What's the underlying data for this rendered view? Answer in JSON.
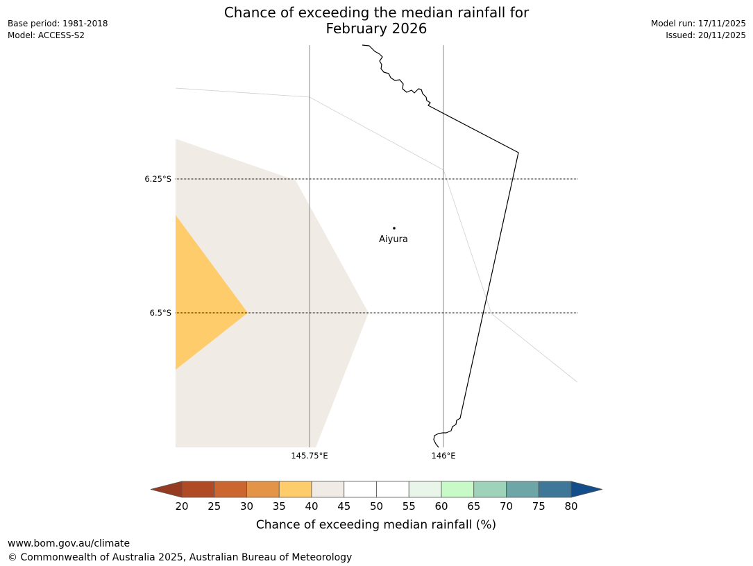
{
  "header": {
    "base_period": "Base period: 1981-2018",
    "model": "Model: ACCESS-S2",
    "model_run": "Model run: 17/11/2025",
    "issued": "Issued: 20/11/2025",
    "title_line1": "Chance of exceeding the median rainfall for",
    "title_line2": "February 2026"
  },
  "map": {
    "town": "Aiyura",
    "lat_labels": [
      "6.25°S",
      "6.5°S"
    ],
    "lon_labels": [
      "145.75°E",
      "146°E"
    ],
    "colors": {
      "band_35_40": "#fecc6a",
      "band_40_45": "#f0ebe5",
      "coastline": "#000000",
      "gridline": "#888888"
    }
  },
  "colorbar": {
    "label": "Chance of exceeding median rainfall (%)",
    "ticks": [
      "20",
      "25",
      "30",
      "35",
      "40",
      "45",
      "50",
      "55",
      "60",
      "65",
      "70",
      "75",
      "80"
    ],
    "under_color": "#963a22",
    "over_color": "#144e8a",
    "band_colors": [
      "#b04a24",
      "#cc6630",
      "#e39446",
      "#fecc6a",
      "#f0ebe5",
      "#ffffff",
      "#ffffff",
      "#e8f5e8",
      "#c8fac8",
      "#9ed2b9",
      "#6ea6a8",
      "#3e7797"
    ]
  },
  "footer": {
    "url": "www.bom.gov.au/climate",
    "copyright": "© Commonwealth of Australia 2025, Australian Bureau of Meteorology"
  }
}
